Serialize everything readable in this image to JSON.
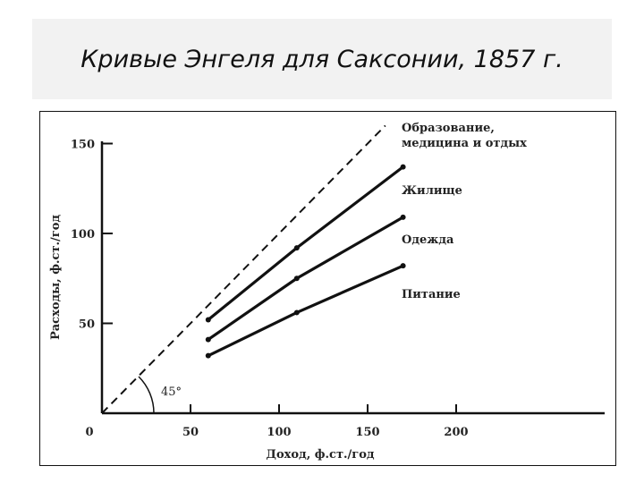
{
  "slide": {
    "title": "Кривые Энгеля для Саксонии, 1857 г."
  },
  "chart_data": {
    "type": "line",
    "xlabel": "Доход, ф.ст./год",
    "ylabel": "Расходы, ф.ст./год",
    "xlim": [
      0,
      280
    ],
    "ylim": [
      0,
      155
    ],
    "xticks": [
      0,
      50,
      100,
      150,
      200
    ],
    "yticks": [
      50,
      100,
      150
    ],
    "xtick_labels": [
      "0",
      "50",
      "100",
      "150",
      "200"
    ],
    "ytick_labels": [
      "50",
      "100",
      "150"
    ],
    "reference_line": {
      "label": "45°",
      "x": [
        0,
        160
      ],
      "y": [
        0,
        160
      ]
    },
    "series": [
      {
        "name": "Образование, медицина и отдых",
        "x": [
          60,
          110,
          170
        ],
        "y": [
          52,
          92,
          137
        ]
      },
      {
        "name": "Жилище",
        "x": [
          60,
          110,
          170
        ],
        "y": [
          41,
          75,
          109
        ]
      },
      {
        "name": "Одежда",
        "x": [
          60,
          110,
          170
        ],
        "y": [
          32,
          56,
          82
        ]
      }
    ],
    "series_label_lines": [
      [
        "Образование,",
        "медицина и отдых"
      ],
      [
        "Жилище"
      ],
      [
        "Одежда"
      ],
      [
        "Питание"
      ]
    ],
    "grid": false,
    "colors": {
      "line": "#111111",
      "axis": "#111111",
      "text": "#222222"
    }
  }
}
